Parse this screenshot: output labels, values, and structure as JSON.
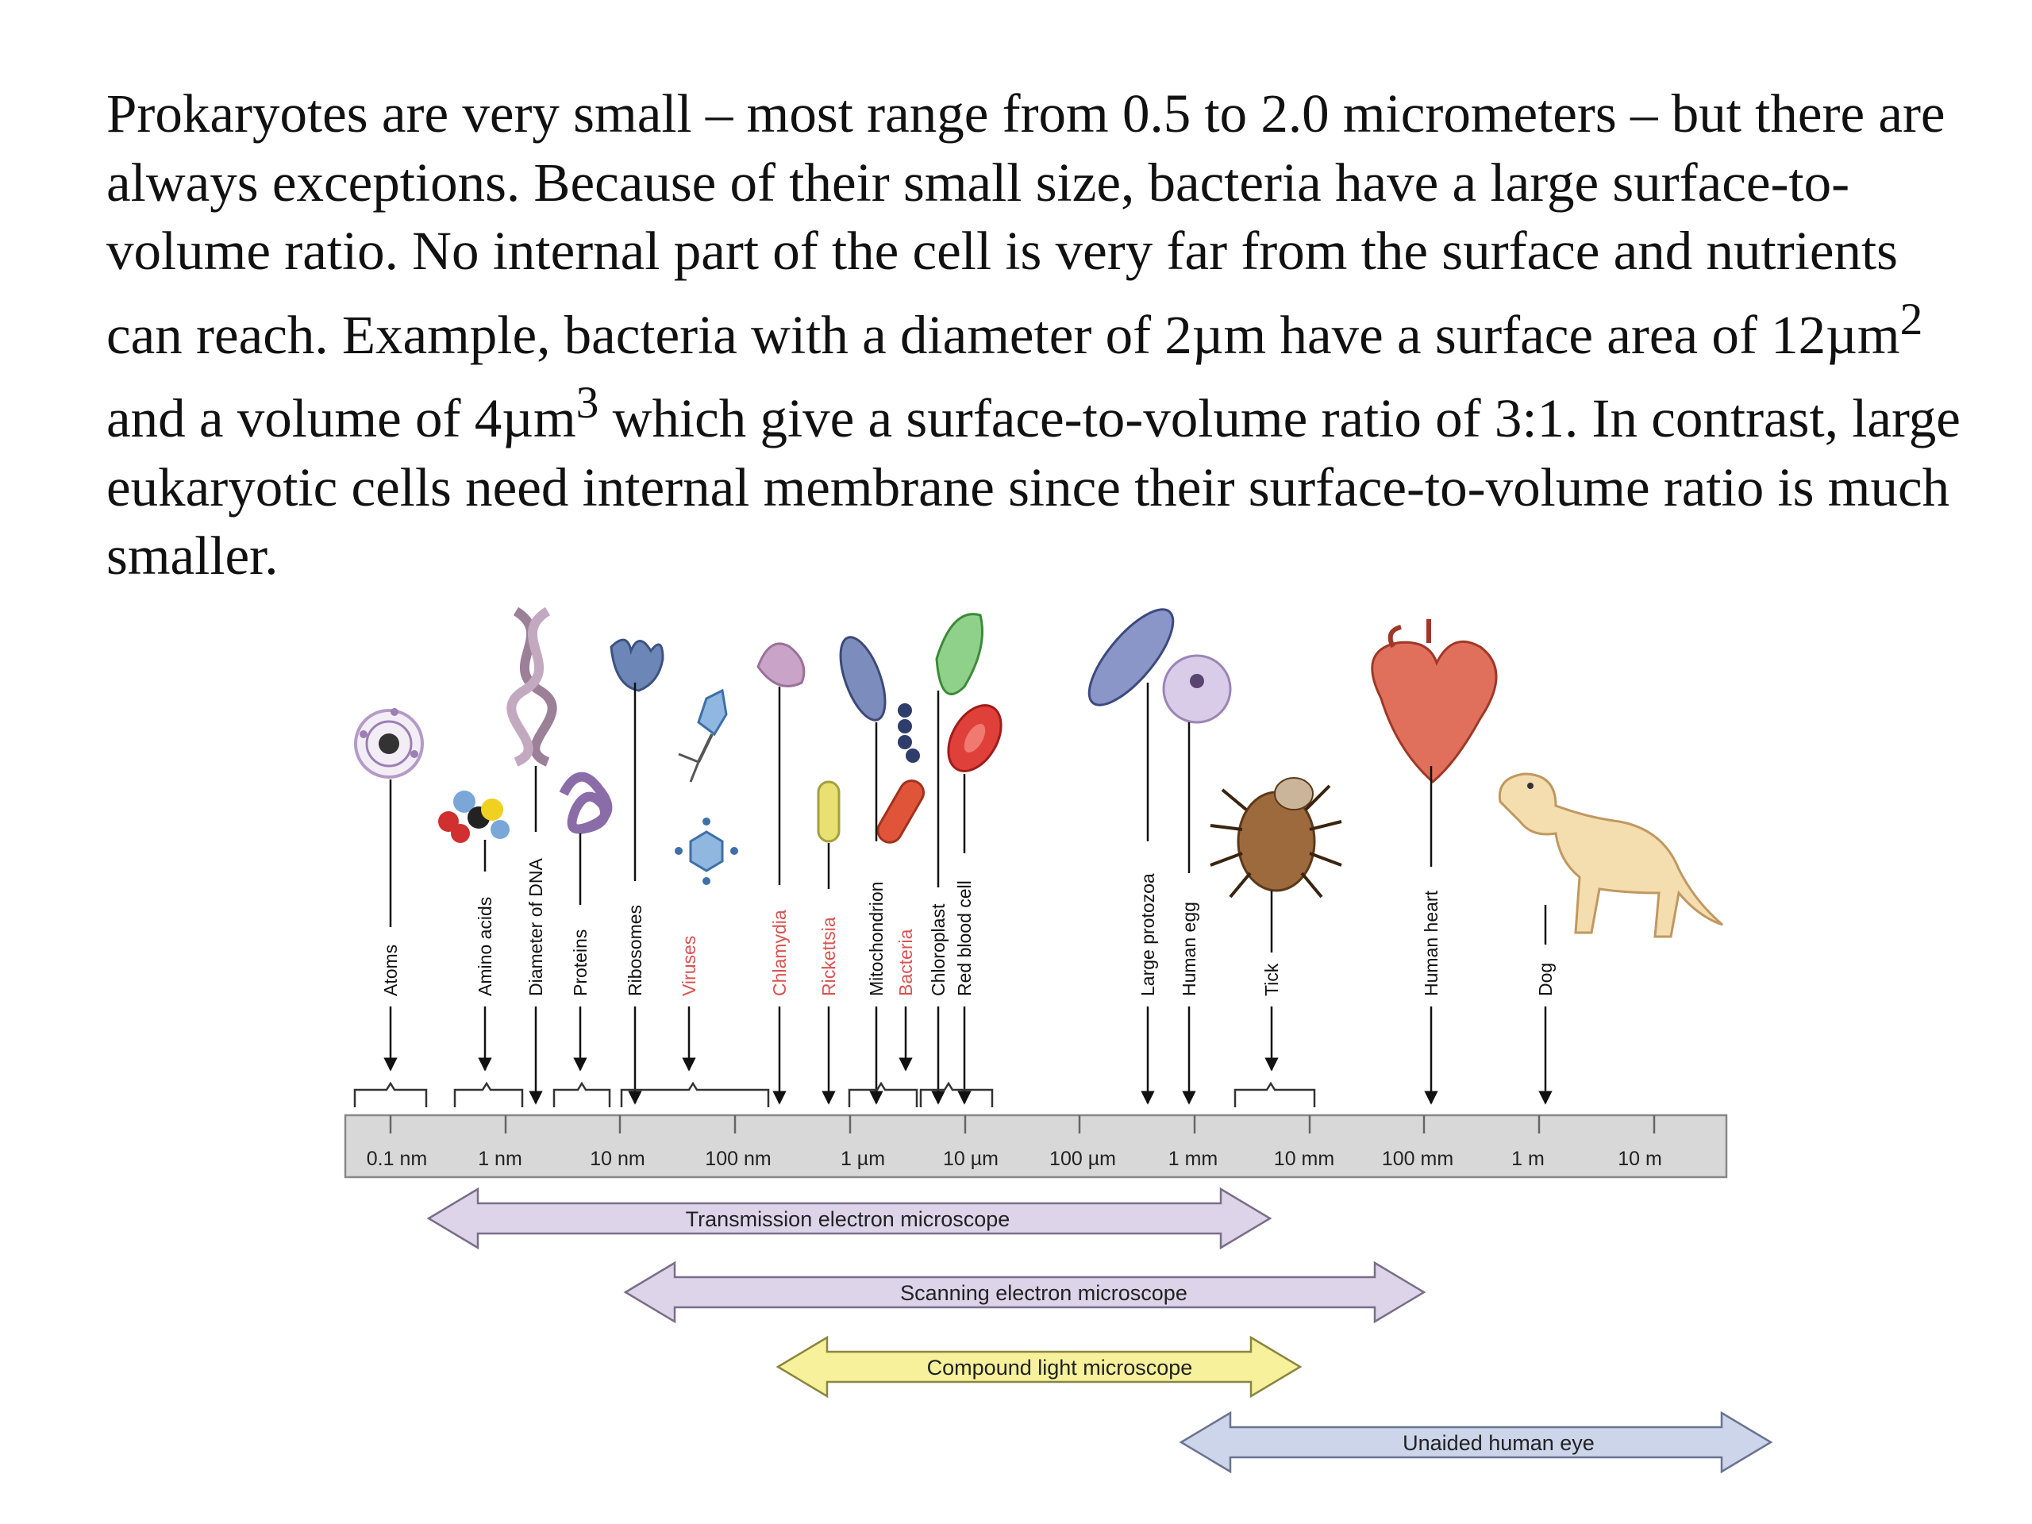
{
  "paragraph": {
    "text_1": "Prokaryotes are very small – most range from 0.5 to 2.0 micrometers – but there are always exceptions.  Because of their small size, bacteria have a large surface-to-volume ratio. No internal part of the cell is very far from the surface and nutrients can reach. Example, bacteria with a diameter of 2µm have a surface area of 12µm",
    "sup_1": "2",
    "text_2": " and a volume of 4µm",
    "sup_2": "3",
    "text_3": " which give a surface-to-volume ratio of 3:1. In contrast, large eukaryotic cells need internal membrane since their surface-to-volume ratio is much smaller."
  },
  "scale": {
    "ticks": [
      "0.1 nm",
      "1 nm",
      "10 nm",
      "100 nm",
      "1 µm",
      "10 µm",
      "100 µm",
      "1 mm",
      "10 mm",
      "100 mm",
      "1 m",
      "10 m"
    ]
  },
  "items": [
    {
      "label": "Atoms",
      "color": "#111111"
    },
    {
      "label": "Amino acids",
      "color": "#111111"
    },
    {
      "label": "Diameter of DNA",
      "color": "#111111"
    },
    {
      "label": "Proteins",
      "color": "#111111"
    },
    {
      "label": "Ribosomes",
      "color": "#111111"
    },
    {
      "label": "Viruses",
      "color": "#d9534f"
    },
    {
      "label": "Chlamydia",
      "color": "#d9534f"
    },
    {
      "label": "Rickettsia",
      "color": "#d9534f"
    },
    {
      "label": "Mitochondrion",
      "color": "#111111"
    },
    {
      "label": "Bacteria",
      "color": "#d9534f"
    },
    {
      "label": "Chloroplast",
      "color": "#111111"
    },
    {
      "label": "Red blood cell",
      "color": "#111111"
    },
    {
      "label": "Large protozoa",
      "color": "#111111"
    },
    {
      "label": "Human egg",
      "color": "#111111"
    },
    {
      "label": "Tick",
      "color": "#111111"
    },
    {
      "label": "Human heart",
      "color": "#111111"
    },
    {
      "label": "Dog",
      "color": "#111111"
    }
  ],
  "ranges": [
    {
      "label": "Transmission electron microscope",
      "color": "#ddd4ea"
    },
    {
      "label": "Scanning electron microscope",
      "color": "#ddd4ea"
    },
    {
      "label": "Compound light microscope",
      "color": "#f6f19a"
    },
    {
      "label": "Unaided human eye",
      "color": "#cdd5ea"
    }
  ]
}
